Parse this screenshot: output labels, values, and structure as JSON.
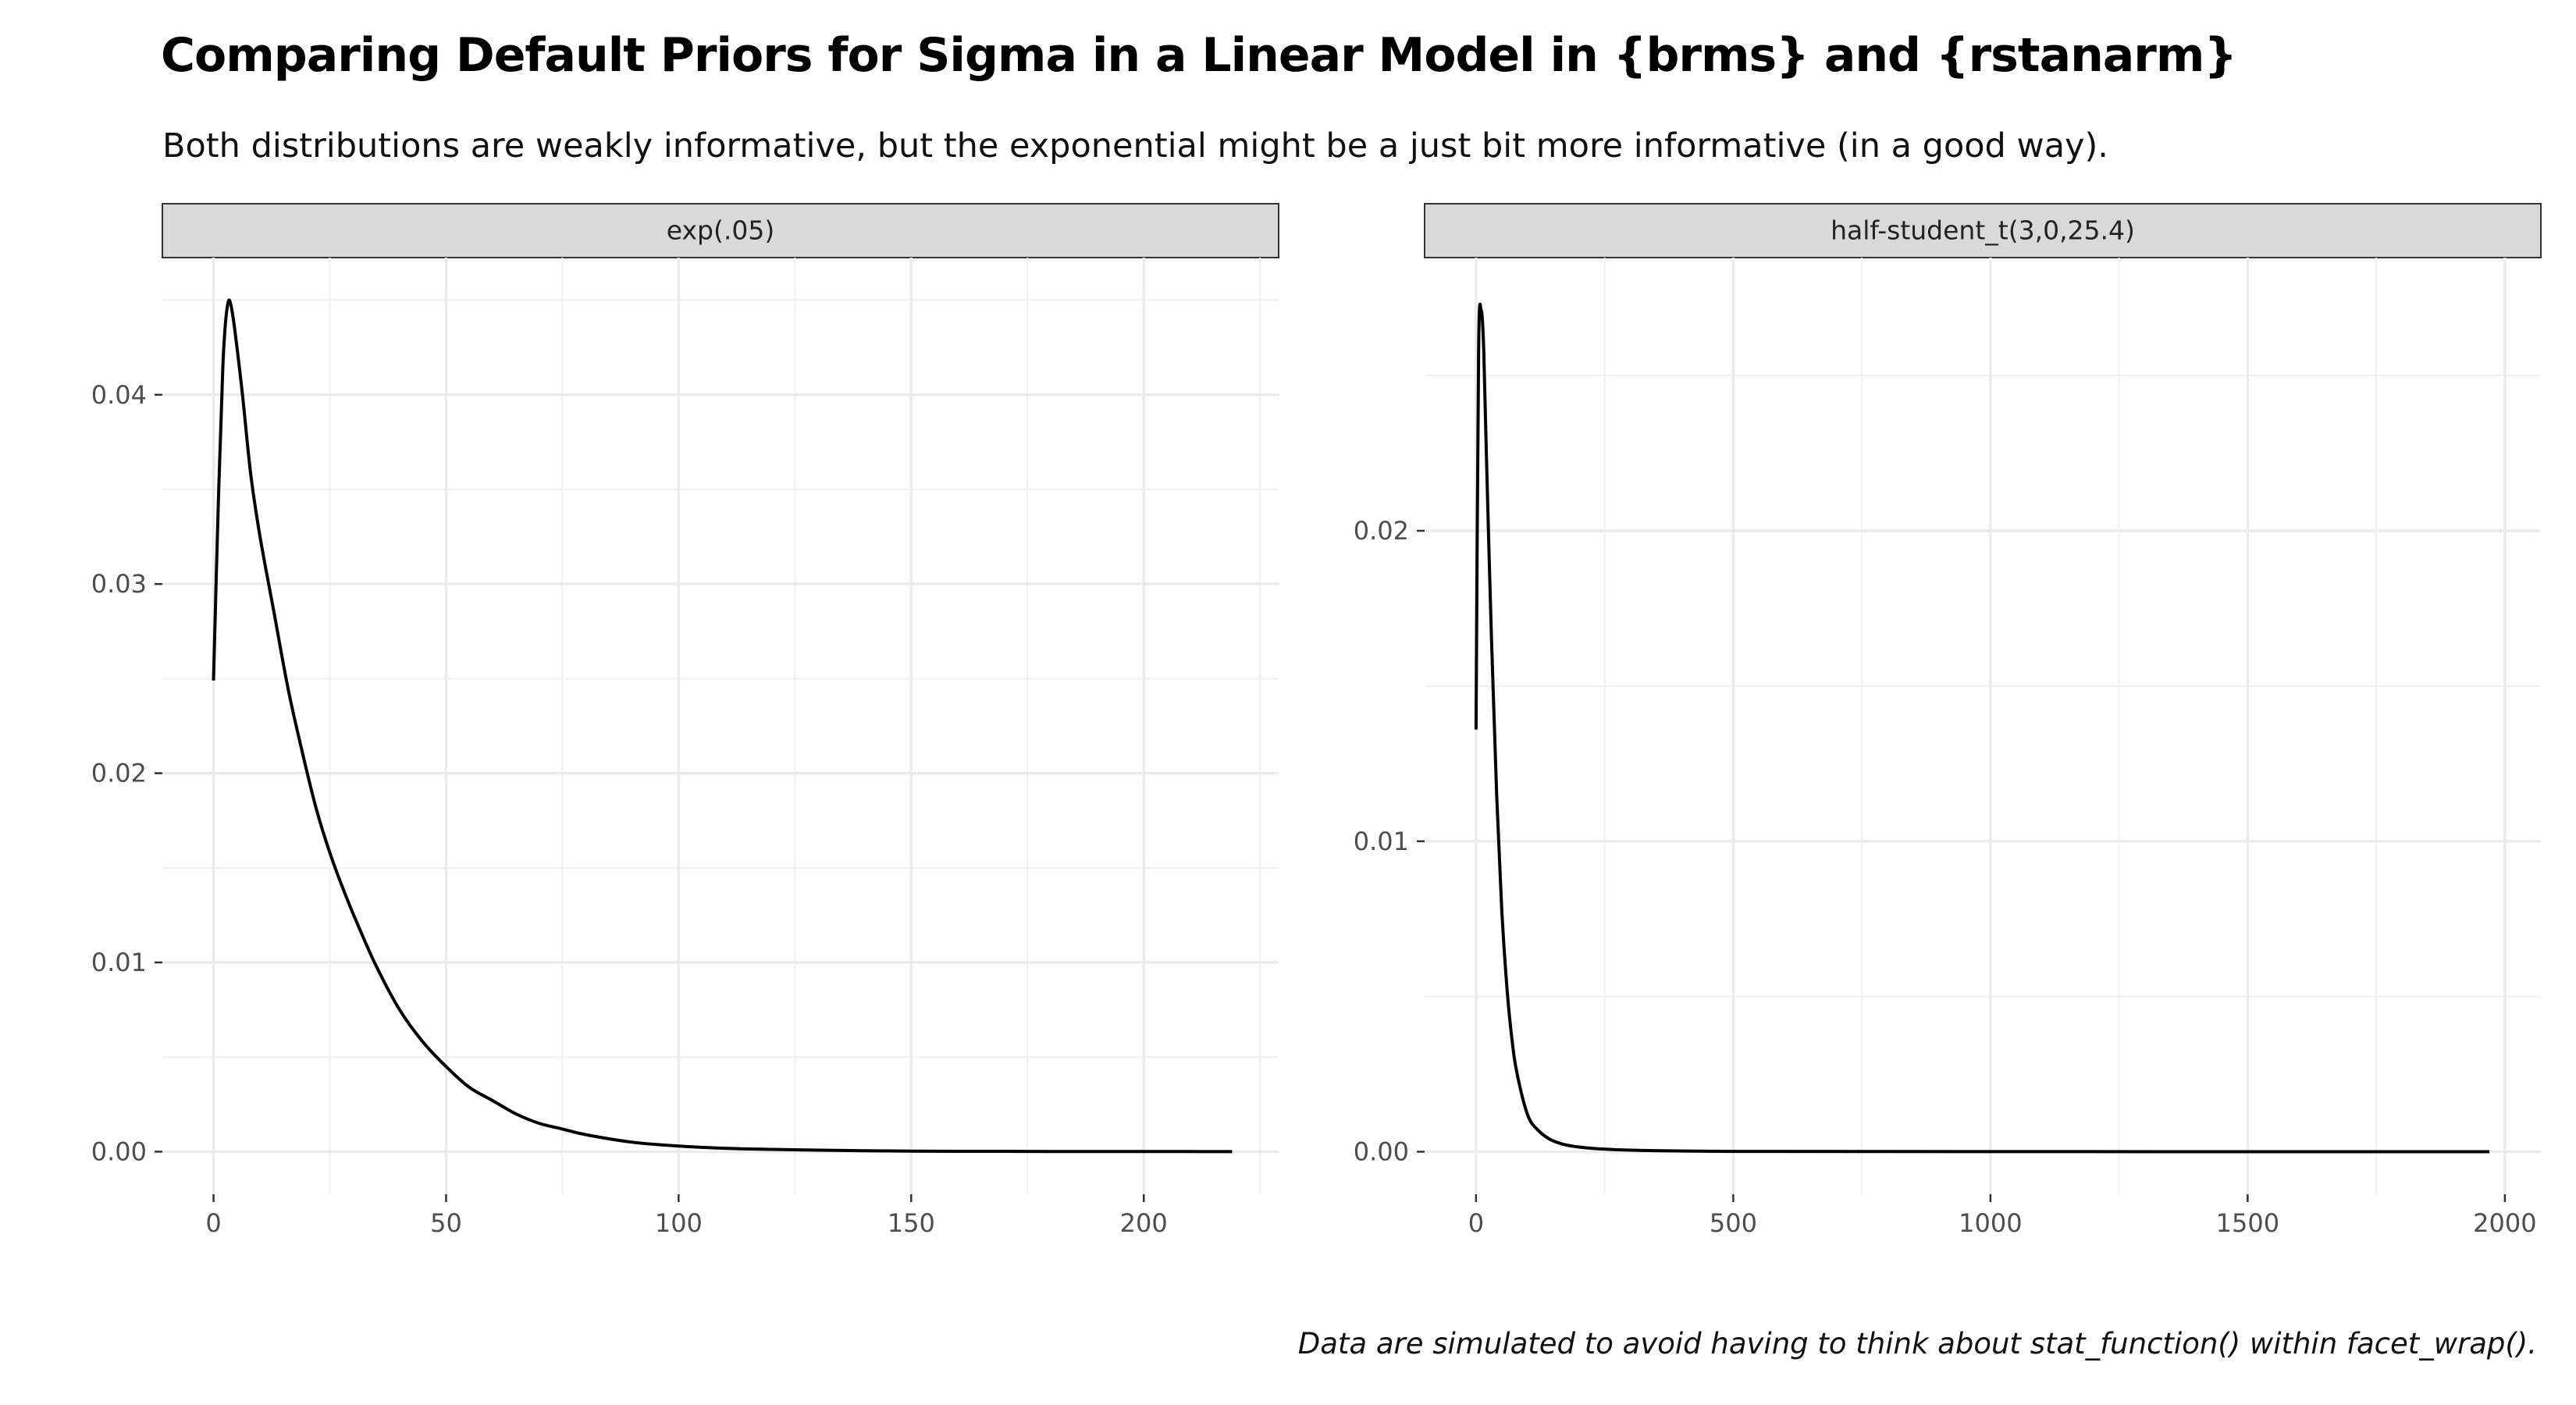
{
  "title": "Comparing Default Priors for Sigma in a Linear Model in {brms} and {rstanarm}",
  "subtitle": "Both distributions are weakly informative, but the exponential might be a just bit more informative (in a good way).",
  "caption": "Data are simulated to avoid having to think about stat_function() within facet_wrap().",
  "chart_data": [
    {
      "type": "line",
      "facet_label": "exp(.05)",
      "x_ticks": [
        0,
        50,
        100,
        150,
        200
      ],
      "y_ticks": [
        0.0,
        0.01,
        0.02,
        0.03,
        0.04
      ],
      "y_tick_labels": [
        "0.00",
        "0.01",
        "0.02",
        "0.03",
        "0.04"
      ],
      "xlim": [
        -11,
        229
      ],
      "ylim": [
        -0.00225,
        0.04725
      ],
      "x": [
        0,
        1,
        2,
        3,
        4,
        6,
        8,
        10,
        13,
        16,
        19,
        22,
        25,
        28,
        31,
        35,
        40,
        45,
        50,
        55,
        60,
        65,
        70,
        75,
        80,
        90,
        100,
        110,
        120,
        130,
        140,
        150,
        160,
        170,
        180,
        190,
        200,
        210,
        219
      ],
      "y": [
        0.0249,
        0.034,
        0.0415,
        0.0447,
        0.0444,
        0.0405,
        0.0358,
        0.0325,
        0.0285,
        0.0245,
        0.0212,
        0.0182,
        0.0158,
        0.0138,
        0.012,
        0.0098,
        0.0075,
        0.0058,
        0.0045,
        0.0034,
        0.0027,
        0.002,
        0.0015,
        0.0012,
        0.0009,
        0.0005,
        0.0003,
        0.00018,
        0.00012,
        8e-05,
        5e-05,
        3e-05,
        2e-05,
        2e-05,
        1e-05,
        1e-05,
        1e-05,
        5e-06,
        3e-06
      ],
      "grid": true
    },
    {
      "type": "line",
      "facet_label": "half-student_t(3,0,25.4)",
      "x_ticks": [
        0,
        500,
        1000,
        1500,
        2000
      ],
      "y_ticks": [
        0.0,
        0.01,
        0.02
      ],
      "y_tick_labels": [
        "0.00",
        "0.01",
        "0.02"
      ],
      "xlim": [
        -100,
        2070
      ],
      "ylim": [
        -0.00137,
        0.0288
      ],
      "x": [
        0,
        5,
        10,
        15,
        20,
        30,
        40,
        50,
        60,
        70,
        80,
        100,
        120,
        150,
        200,
        300,
        500,
        800,
        1200,
        1600,
        1970
      ],
      "y": [
        0.0136,
        0.0258,
        0.0271,
        0.0258,
        0.0225,
        0.0165,
        0.0115,
        0.0078,
        0.0053,
        0.0036,
        0.0025,
        0.0012,
        0.0007,
        0.00035,
        0.00015,
        5e-05,
        1e-05,
        5e-06,
        2e-06,
        1e-06,
        5e-07
      ],
      "grid": true
    }
  ]
}
